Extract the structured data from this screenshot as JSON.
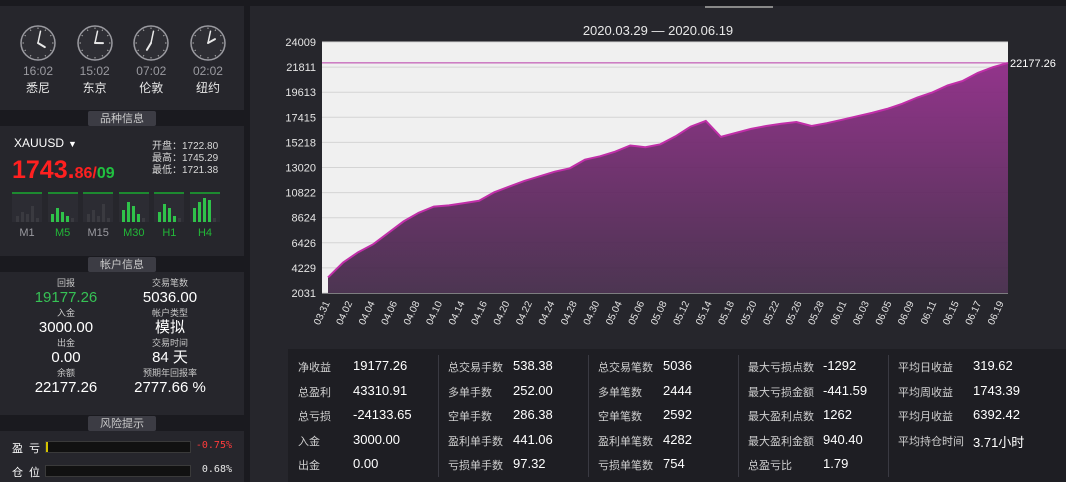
{
  "clocks": [
    {
      "time": "16:02",
      "city": "悉尼",
      "h": 16,
      "m": 2
    },
    {
      "time": "15:02",
      "city": "东京",
      "h": 15,
      "m": 2
    },
    {
      "time": "07:02",
      "city": "伦敦",
      "h": 7,
      "m": 2
    },
    {
      "time": "02:02",
      "city": "纽约",
      "h": 2,
      "m": 2
    }
  ],
  "sections": {
    "symbol_info": "品种信息",
    "account_info": "帐户信息",
    "risk": "风险提示"
  },
  "symbol": {
    "name": "XAUUSD",
    "price_main": "1743.",
    "price_frac": "86",
    "price_slash": "/",
    "price_alt": "09",
    "open": "开盘：1722.80",
    "high": "最高：1745.29",
    "low": "最低：1721.38"
  },
  "timeframes": [
    {
      "label": "M1",
      "active": false
    },
    {
      "label": "M5",
      "active": true
    },
    {
      "label": "M15",
      "active": false
    },
    {
      "label": "M30",
      "active": true
    },
    {
      "label": "H1",
      "active": true
    },
    {
      "label": "H4",
      "active": true
    }
  ],
  "account": {
    "profit_label": "回报",
    "profit": "19177.26",
    "trades_label": "交易笔数",
    "trades": "5036.00",
    "deposit_label": "入金",
    "deposit": "3000.00",
    "type_label": "帐户类型",
    "type": "模拟",
    "withdraw_label": "出金",
    "withdraw": "0.00",
    "period_label": "交易时间",
    "period": "84 天",
    "balance_label": "余额",
    "balance": "22177.26",
    "annual_label": "预期年回报率",
    "annual": "2777.66 %"
  },
  "risk": [
    {
      "label": "盈亏",
      "value": "-0.75%",
      "color": "#ff3b3b",
      "fill": 0.01
    },
    {
      "label": "仓位",
      "value": "0.68%",
      "color": "#e8e8e8",
      "fill": 0.0
    }
  ],
  "chart_title": "2020.03.29 — 2020.06.19",
  "chart_data": {
    "type": "area",
    "title": "2020.03.29 — 2020.06.19",
    "y_ticks": [
      "24009",
      "21811",
      "19613",
      "17415",
      "15218",
      "13020",
      "10822",
      "8624",
      "6426",
      "4229",
      "2031"
    ],
    "ylim": [
      2031,
      24009
    ],
    "x_ticks": [
      "03.31",
      "04.02",
      "04.04",
      "04.06",
      "04.08",
      "04.10",
      "04.14",
      "04.16",
      "04.20",
      "04.22",
      "04.24",
      "04.28",
      "04.30",
      "05.04",
      "05.06",
      "05.08",
      "05.12",
      "05.14",
      "05.18",
      "05.20",
      "05.22",
      "05.26",
      "05.28",
      "06.01",
      "06.03",
      "06.05",
      "06.09",
      "06.11",
      "06.15",
      "06.17",
      "06.19"
    ],
    "final_label": "22177.26",
    "reference_line": 22177.26,
    "color": "#c02fa8",
    "values": [
      3400,
      4700,
      5600,
      6300,
      7300,
      8300,
      9050,
      9600,
      9700,
      9900,
      10100,
      10850,
      11350,
      11850,
      12250,
      12650,
      12950,
      13700,
      14000,
      14400,
      14950,
      14800,
      15050,
      15750,
      16600,
      17100,
      15700,
      16050,
      16400,
      16650,
      16850,
      17000,
      16650,
      16900,
      17200,
      17500,
      17800,
      18150,
      18600,
      19150,
      19600,
      20200,
      20600,
      21300,
      21800,
      22177.26
    ]
  },
  "stats": [
    [
      {
        "k": "净收益",
        "v": "19177.26"
      },
      {
        "k": "总盈利",
        "v": "43310.91"
      },
      {
        "k": "总亏损",
        "v": "-24133.65"
      },
      {
        "k": "入金",
        "v": "3000.00"
      },
      {
        "k": "出金",
        "v": "0.00"
      }
    ],
    [
      {
        "k": "总交易手数",
        "v": "538.38"
      },
      {
        "k": "多单手数",
        "v": "252.00"
      },
      {
        "k": "空单手数",
        "v": "286.38"
      },
      {
        "k": "盈利单手数",
        "v": "441.06"
      },
      {
        "k": "亏损单手数",
        "v": "97.32"
      }
    ],
    [
      {
        "k": "总交易笔数",
        "v": "5036"
      },
      {
        "k": "多单笔数",
        "v": "2444"
      },
      {
        "k": "空单笔数",
        "v": "2592"
      },
      {
        "k": "盈利单笔数",
        "v": "4282"
      },
      {
        "k": "亏损单笔数",
        "v": "754"
      }
    ],
    [
      {
        "k": "最大亏损点数",
        "v": "-1292"
      },
      {
        "k": "最大亏损金额",
        "v": "-441.59"
      },
      {
        "k": "最大盈利点数",
        "v": "1262"
      },
      {
        "k": "最大盈利金额",
        "v": "940.40"
      },
      {
        "k": "总盈亏比",
        "v": "1.79"
      }
    ],
    [
      {
        "k": "平均日收益",
        "v": "319.62"
      },
      {
        "k": "平均周收益",
        "v": "1743.39"
      },
      {
        "k": "平均月收益",
        "v": "6392.42"
      },
      {
        "k": "平均持仓时间",
        "v": "3.71小时"
      }
    ]
  ]
}
